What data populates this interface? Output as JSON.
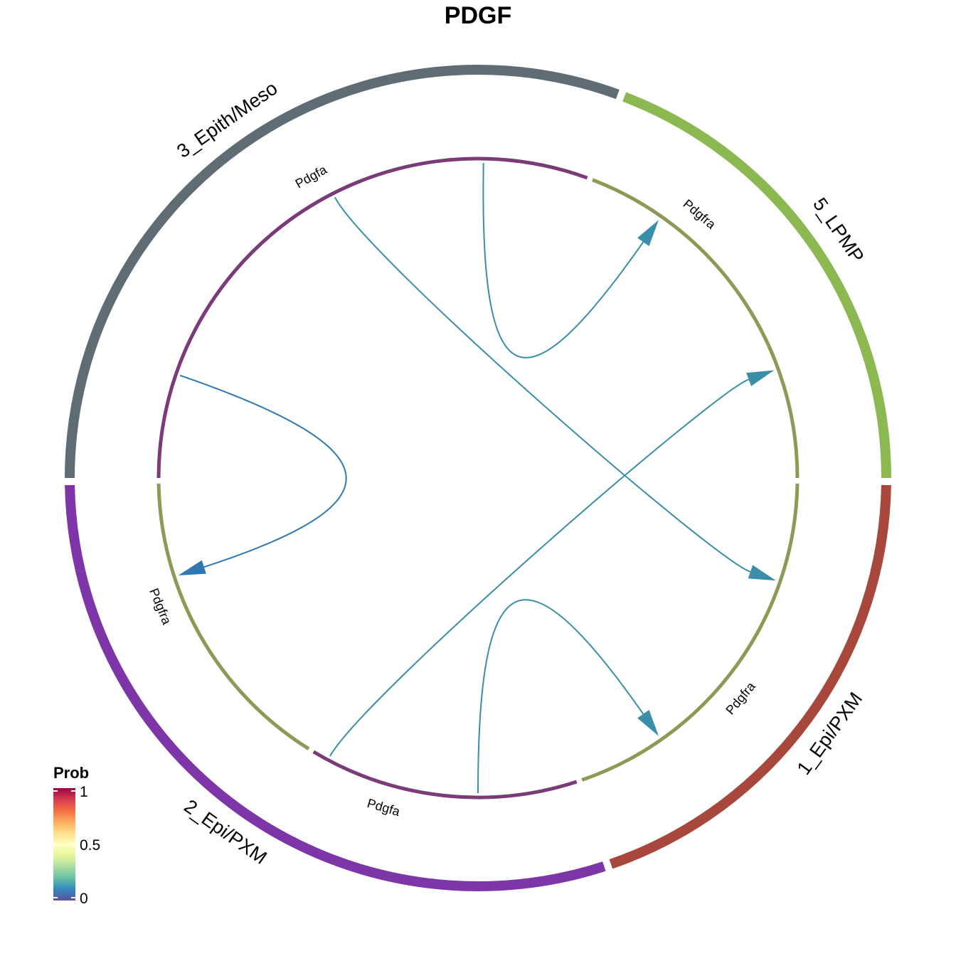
{
  "title": "PDGF",
  "sectors": [
    {
      "name": "5_LPMP",
      "color": "#8BB851",
      "start_deg": 0,
      "end_deg": 69
    },
    {
      "name": "1_Epi/PXM",
      "color": "#A8473C",
      "start_deg": -71,
      "end_deg": -1
    },
    {
      "name": "2_Epi/PXM",
      "color": "#7E35A7",
      "start_deg": -179,
      "end_deg": -72
    },
    {
      "name": "3_Epith/Meso",
      "color": "#5F6C74",
      "start_deg": 70,
      "end_deg": 180
    }
  ],
  "gene_tracks": [
    {
      "sector": "5_LPMP",
      "role": "receptor",
      "color": "#8B9A55",
      "start_deg": 0,
      "end_deg": 69
    },
    {
      "sector": "1_Epi/PXM",
      "role": "receptor",
      "color": "#8B9A55",
      "start_deg": -71,
      "end_deg": -1
    },
    {
      "sector": "2_Epi/PXM",
      "role": "receptor",
      "color": "#8B9A55",
      "start_deg": -179,
      "end_deg": -122
    },
    {
      "sector": "2_Epi/PXM",
      "role": "ligand",
      "color": "#7A3B78",
      "start_deg": -121,
      "end_deg": -72
    },
    {
      "sector": "3_Epith/Meso",
      "role": "ligand",
      "color": "#7A3B78",
      "start_deg": 70,
      "end_deg": 180
    }
  ],
  "gene_labels": [
    {
      "text": "Pdgfra",
      "angle_deg": 50
    },
    {
      "text": "Pdgfra",
      "angle_deg": -40
    },
    {
      "text": "Pdgfra",
      "angle_deg": -158
    },
    {
      "text": "Pdgfa",
      "angle_deg": -106
    },
    {
      "text": "Pdgfa",
      "angle_deg": 119
    }
  ],
  "links": [
    {
      "from": "3_Epith/Meso",
      "to": "5_LPMP",
      "from_deg": 89,
      "to_deg": 55,
      "color": "#3A8EA8"
    },
    {
      "from": "3_Epith/Meso",
      "to": "1_Epi/PXM",
      "from_deg": 117,
      "to_deg": -19,
      "color": "#3A8EA8"
    },
    {
      "from": "3_Epith/Meso",
      "to": "2_Epi/PXM",
      "from_deg": 161,
      "to_deg": -162,
      "color": "#2F78B4"
    },
    {
      "from": "2_Epi/PXM",
      "to": "5_LPMP",
      "from_deg": -118,
      "to_deg": 20,
      "color": "#3A8EA8"
    },
    {
      "from": "2_Epi/PXM",
      "to": "1_Epi/PXM",
      "from_deg": -90,
      "to_deg": -55,
      "color": "#3A8EA8"
    }
  ],
  "legend": {
    "title": "Prob",
    "ticks": [
      "1",
      "0.5",
      "0"
    ],
    "palette": [
      "#5E4FA2",
      "#3288BD",
      "#66C2A5",
      "#ABDDA4",
      "#E6F598",
      "#FFFFBF",
      "#FEE08B",
      "#FDAE61",
      "#F46D43",
      "#D53E4F",
      "#9E0142"
    ]
  }
}
